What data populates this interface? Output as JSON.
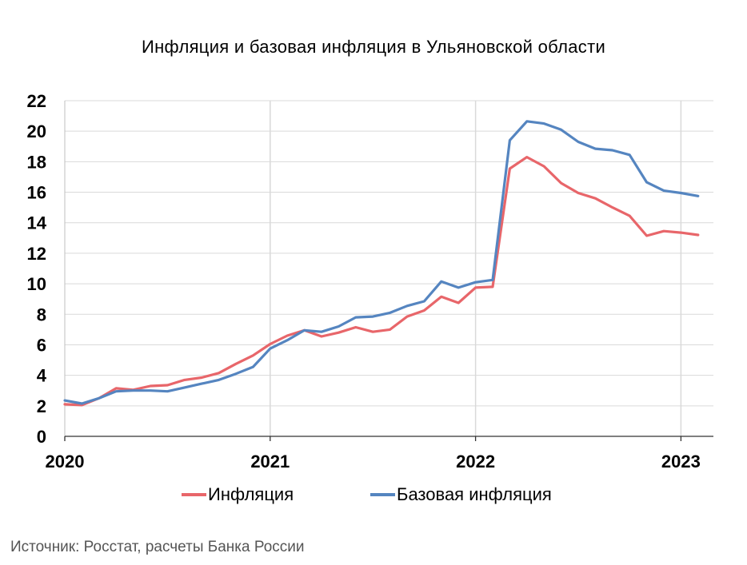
{
  "chart_data": {
    "type": "line",
    "title": "Инфляция и базовая инфляция в Ульяновской области",
    "source": "Источник: Росстат, расчеты Банка России",
    "xlabel": "",
    "ylabel": "",
    "ylim": [
      0,
      22
    ],
    "yticks": [
      0,
      2,
      4,
      6,
      8,
      10,
      12,
      14,
      16,
      18,
      20,
      22
    ],
    "x_tick_labels": [
      "2020",
      "2021",
      "2022",
      "2023"
    ],
    "grid": true,
    "legend_position": "bottom",
    "x": [
      "2020-01",
      "2020-02",
      "2020-03",
      "2020-04",
      "2020-05",
      "2020-06",
      "2020-07",
      "2020-08",
      "2020-09",
      "2020-10",
      "2020-11",
      "2020-12",
      "2021-01",
      "2021-02",
      "2021-03",
      "2021-04",
      "2021-05",
      "2021-06",
      "2021-07",
      "2021-08",
      "2021-09",
      "2021-10",
      "2021-11",
      "2021-12",
      "2022-01",
      "2022-02",
      "2022-03",
      "2022-04",
      "2022-05",
      "2022-06",
      "2022-07",
      "2022-08",
      "2022-09",
      "2022-10",
      "2022-11",
      "2022-12",
      "2023-01",
      "2023-02"
    ],
    "series": [
      {
        "name": "Инфляция",
        "color": "#e8666a",
        "values": [
          2.1,
          2.05,
          2.5,
          3.15,
          3.05,
          3.3,
          3.35,
          3.7,
          3.85,
          4.15,
          4.75,
          5.3,
          6.05,
          6.6,
          6.95,
          6.55,
          6.8,
          7.15,
          6.85,
          7.0,
          7.85,
          8.25,
          9.15,
          8.75,
          9.75,
          9.8,
          17.55,
          18.3,
          17.7,
          16.6,
          15.95,
          15.6,
          15.0,
          14.45,
          13.15,
          13.45,
          13.35,
          13.2
        ]
      },
      {
        "name": "Базовая инфляция",
        "color": "#5585c0",
        "values": [
          2.35,
          2.15,
          2.5,
          2.95,
          3.0,
          3.0,
          2.95,
          3.2,
          3.45,
          3.7,
          4.1,
          4.55,
          5.75,
          6.3,
          6.95,
          6.85,
          7.2,
          7.8,
          7.85,
          8.1,
          8.55,
          8.85,
          10.15,
          9.75,
          10.1,
          10.25,
          19.4,
          20.65,
          20.5,
          20.1,
          19.3,
          18.85,
          18.75,
          18.45,
          16.65,
          16.1,
          15.95,
          15.75
        ]
      }
    ]
  }
}
